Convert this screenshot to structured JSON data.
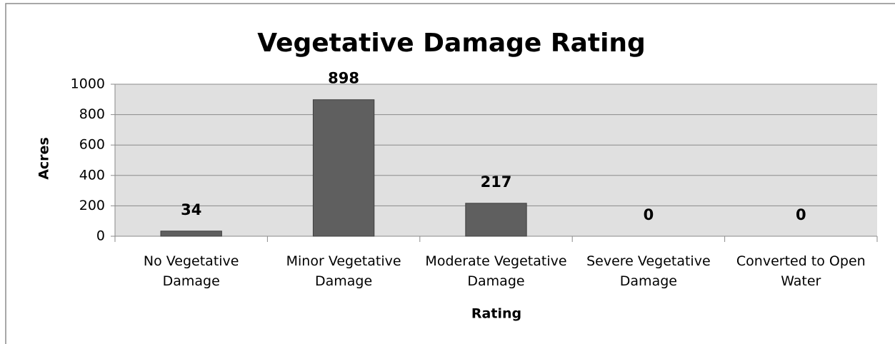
{
  "chart_data": {
    "type": "bar",
    "title": "Vegetative Damage Rating",
    "x_label": "Rating",
    "y_label": "Acres",
    "categories": [
      "No Vegetative Damage",
      "Minor Vegetative Damage",
      "Moderate Vegetative Damage",
      "Severe Vegetative Damage",
      "Converted to Open Water"
    ],
    "values": [
      34,
      898,
      217,
      0,
      0
    ],
    "color": "#5f5f5f",
    "ylim": [
      0,
      1000
    ],
    "yticks": [
      0,
      200,
      400,
      600,
      800,
      1000
    ],
    "grid": true
  }
}
